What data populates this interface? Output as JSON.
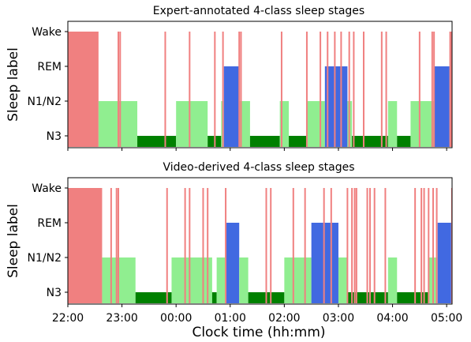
{
  "chart_data": [
    {
      "type": "area",
      "title": "Expert-annotated 4-class sleep stages",
      "xlabel": "",
      "ylabel": "Sleep label",
      "categories": [
        "N3",
        "N1/N2",
        "REM",
        "Wake"
      ],
      "xlim": [
        "22:00",
        "05:06"
      ],
      "segments": [
        {
          "start": "22:00",
          "end": "22:34",
          "stage": "Wake"
        },
        {
          "start": "22:34",
          "end": "23:17",
          "stage": "N1/N2"
        },
        {
          "start": "23:17",
          "end": "00:00",
          "stage": "N3"
        },
        {
          "start": "00:00",
          "end": "00:35",
          "stage": "N1/N2"
        },
        {
          "start": "00:35",
          "end": "00:50",
          "stage": "N3"
        },
        {
          "start": "00:50",
          "end": "00:53",
          "stage": "N1/N2"
        },
        {
          "start": "00:53",
          "end": "01:10",
          "stage": "REM"
        },
        {
          "start": "01:10",
          "end": "01:22",
          "stage": "N1/N2"
        },
        {
          "start": "01:22",
          "end": "01:55",
          "stage": "N3"
        },
        {
          "start": "01:55",
          "end": "02:05",
          "stage": "N1/N2"
        },
        {
          "start": "02:05",
          "end": "02:25",
          "stage": "N3"
        },
        {
          "start": "02:25",
          "end": "02:45",
          "stage": "N1/N2"
        },
        {
          "start": "02:45",
          "end": "03:10",
          "stage": "REM"
        },
        {
          "start": "03:10",
          "end": "03:15",
          "stage": "N1/N2"
        },
        {
          "start": "03:15",
          "end": "03:55",
          "stage": "N3"
        },
        {
          "start": "03:55",
          "end": "04:05",
          "stage": "N1/N2"
        },
        {
          "start": "04:05",
          "end": "04:20",
          "stage": "N3"
        },
        {
          "start": "04:20",
          "end": "04:46",
          "stage": "N1/N2"
        },
        {
          "start": "04:46",
          "end": "05:03",
          "stage": "REM"
        },
        {
          "start": "05:03",
          "end": "05:06",
          "stage": "Wake"
        }
      ],
      "wake_spikes": [
        "22:56",
        "22:58",
        "23:48",
        "00:15",
        "00:43",
        "00:52",
        "01:10",
        "01:12",
        "01:57",
        "02:25",
        "02:40",
        "02:48",
        "02:56",
        "03:03",
        "03:12",
        "03:17",
        "03:28",
        "03:48",
        "03:53",
        "04:30",
        "04:44",
        "04:46"
      ]
    },
    {
      "type": "area",
      "title": "Video-derived 4-class sleep stages",
      "xlabel": "Clock time (hh:mm)",
      "ylabel": "Sleep label",
      "categories": [
        "N3",
        "N1/N2",
        "REM",
        "Wake"
      ],
      "xlim": [
        "22:00",
        "05:06"
      ],
      "xticks": [
        "22:00",
        "23:00",
        "00:00",
        "01:00",
        "02:00",
        "03:00",
        "04:00",
        "05:00"
      ],
      "segments": [
        {
          "start": "22:00",
          "end": "22:38",
          "stage": "Wake"
        },
        {
          "start": "22:38",
          "end": "23:15",
          "stage": "N1/N2"
        },
        {
          "start": "23:15",
          "end": "23:55",
          "stage": "N3"
        },
        {
          "start": "23:55",
          "end": "00:40",
          "stage": "N1/N2"
        },
        {
          "start": "00:40",
          "end": "00:45",
          "stage": "N3"
        },
        {
          "start": "00:45",
          "end": "00:55",
          "stage": "N1/N2"
        },
        {
          "start": "00:55",
          "end": "01:10",
          "stage": "REM"
        },
        {
          "start": "01:10",
          "end": "01:20",
          "stage": "N1/N2"
        },
        {
          "start": "01:20",
          "end": "02:00",
          "stage": "N3"
        },
        {
          "start": "02:00",
          "end": "02:30",
          "stage": "N1/N2"
        },
        {
          "start": "02:30",
          "end": "03:00",
          "stage": "REM"
        },
        {
          "start": "03:00",
          "end": "03:10",
          "stage": "N1/N2"
        },
        {
          "start": "03:10",
          "end": "03:55",
          "stage": "N3"
        },
        {
          "start": "03:55",
          "end": "04:05",
          "stage": "N1/N2"
        },
        {
          "start": "04:05",
          "end": "04:40",
          "stage": "N3"
        },
        {
          "start": "04:40",
          "end": "04:50",
          "stage": "N1/N2"
        },
        {
          "start": "04:50",
          "end": "05:05",
          "stage": "REM"
        },
        {
          "start": "05:05",
          "end": "05:06",
          "stage": "Wake"
        }
      ],
      "wake_spikes": [
        "22:48",
        "22:54",
        "22:56",
        "23:50",
        "00:10",
        "00:15",
        "00:30",
        "00:35",
        "00:55",
        "01:40",
        "01:45",
        "02:10",
        "02:23",
        "02:44",
        "02:52",
        "03:10",
        "03:15",
        "03:18",
        "03:20",
        "03:32",
        "03:35",
        "03:40",
        "03:52",
        "04:25",
        "04:32",
        "04:35",
        "04:40",
        "04:45",
        "04:49"
      ]
    }
  ],
  "colors": {
    "Wake": "#f08080",
    "REM": "#4169e1",
    "N1/N2": "#90ee90",
    "N3": "#008000"
  }
}
